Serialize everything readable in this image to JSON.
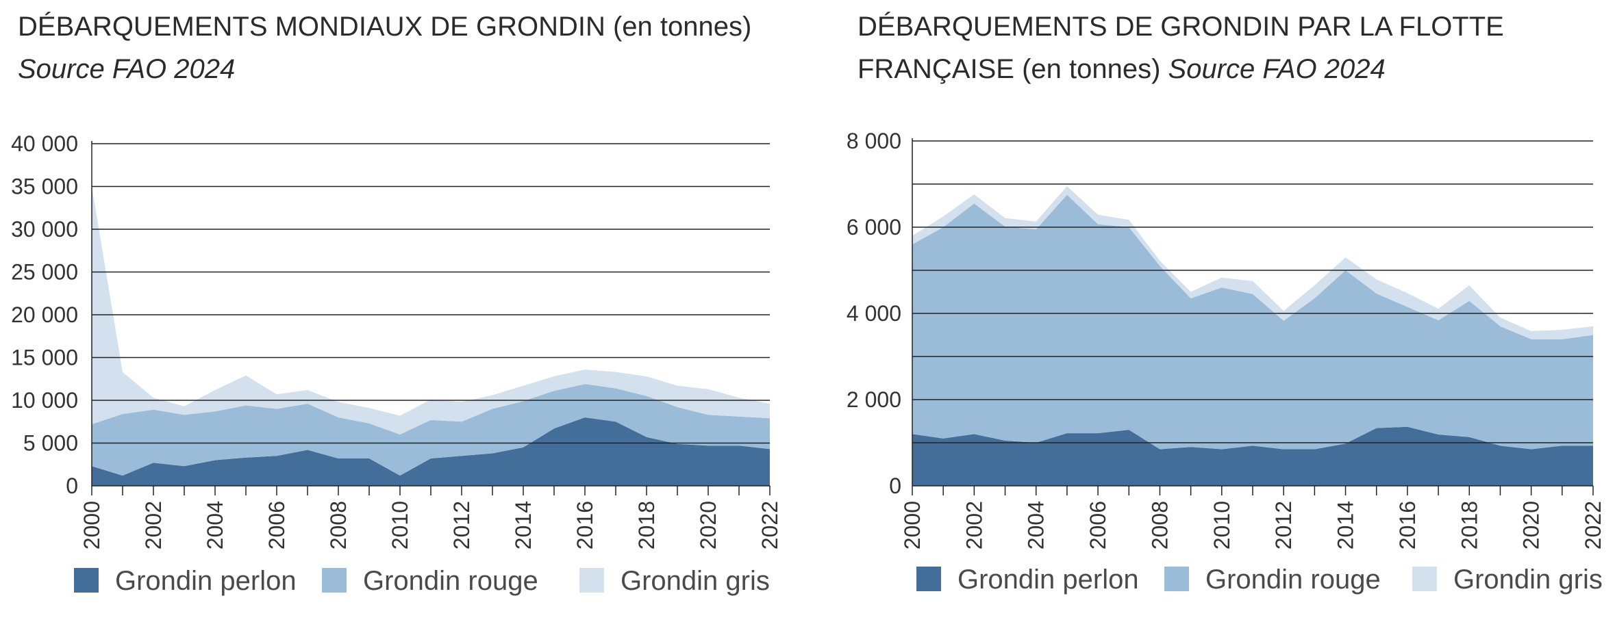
{
  "colors": {
    "perlon": "#436e99",
    "rouge": "#9bbcd8",
    "gris": "#d3e0ee",
    "grid": "#222222"
  },
  "chart_data": [
    {
      "type": "area",
      "stacked": true,
      "title": "DÉBARQUEMENTS MONDIAUX DE GRONDIN",
      "title_unit": "(en tonnes)",
      "subtitle": "Source FAO 2024",
      "ylim": [
        0,
        40000
      ],
      "y_ticks": [
        0,
        5000,
        10000,
        15000,
        20000,
        25000,
        30000,
        35000,
        40000
      ],
      "y_tick_labels": [
        "0",
        "5 000",
        "10 000",
        "15 000",
        "20 000",
        "25 000",
        "30 000",
        "35 000",
        "40 000"
      ],
      "x": [
        2000,
        2001,
        2002,
        2003,
        2004,
        2005,
        2006,
        2007,
        2008,
        2009,
        2010,
        2011,
        2012,
        2013,
        2014,
        2015,
        2016,
        2017,
        2018,
        2019,
        2020,
        2021,
        2022
      ],
      "x_tick_labels": [
        "2000",
        "2002",
        "2004",
        "2006",
        "2008",
        "2010",
        "2012",
        "2014",
        "2016",
        "2018",
        "2020",
        "2022"
      ],
      "grid": true,
      "legend_position": "bottom",
      "series": [
        {
          "name": "Grondin perlon",
          "color_key": "perlon",
          "values": [
            2300,
            1200,
            2700,
            2300,
            3000,
            3300,
            3500,
            4200,
            3200,
            3200,
            1200,
            3200,
            3500,
            3800,
            4500,
            6700,
            8000,
            7500,
            5700,
            4900,
            4700,
            4700,
            4300
          ]
        },
        {
          "name": "Grondin rouge",
          "color_key": "rouge",
          "values": [
            4900,
            7200,
            6200,
            6000,
            5700,
            6100,
            5500,
            5400,
            4800,
            4100,
            4800,
            4500,
            4000,
            5200,
            5400,
            4400,
            3900,
            3900,
            4800,
            4300,
            3600,
            3400,
            3600
          ]
        },
        {
          "name": "Grondin gris",
          "color_key": "gris",
          "values": [
            27800,
            4900,
            1400,
            1000,
            2500,
            3500,
            1700,
            1600,
            1800,
            1800,
            2200,
            2400,
            2300,
            1600,
            1800,
            1700,
            1700,
            1900,
            2300,
            2500,
            3000,
            2200,
            1700
          ]
        }
      ]
    },
    {
      "type": "area",
      "stacked": true,
      "title": "DÉBARQUEMENTS DE GRONDIN PAR LA FLOTTE FRANÇAISE",
      "title_unit": "(en tonnes)",
      "subtitle": "Source FAO 2024",
      "ylim": [
        0,
        8000
      ],
      "y_ticks": [
        0,
        2000,
        4000,
        6000,
        8000
      ],
      "y_tick_labels": [
        "0",
        "2 000",
        "4 000",
        "6 000",
        "8 000"
      ],
      "minor_grid": [
        1000,
        3000,
        5000,
        7000
      ],
      "x": [
        2000,
        2001,
        2002,
        2003,
        2004,
        2005,
        2006,
        2007,
        2008,
        2009,
        2010,
        2011,
        2012,
        2013,
        2014,
        2015,
        2016,
        2017,
        2018,
        2019,
        2020,
        2021,
        2022
      ],
      "x_tick_labels": [
        "2000",
        "2002",
        "2004",
        "2006",
        "2008",
        "2010",
        "2012",
        "2014",
        "2016",
        "2018",
        "2020",
        "2022"
      ],
      "grid": true,
      "legend_position": "bottom",
      "series": [
        {
          "name": "Grondin perlon",
          "color_key": "perlon",
          "values": [
            1200,
            1100,
            1200,
            1050,
            1000,
            1220,
            1220,
            1300,
            850,
            900,
            850,
            930,
            850,
            850,
            980,
            1340,
            1370,
            1190,
            1130,
            930,
            850,
            930,
            930
          ]
        },
        {
          "name": "Grondin rouge",
          "color_key": "rouge",
          "values": [
            4400,
            4900,
            5350,
            4960,
            4950,
            5530,
            4850,
            4700,
            4250,
            3450,
            3750,
            3520,
            2980,
            3500,
            4020,
            3120,
            2780,
            2650,
            3160,
            2770,
            2550,
            2470,
            2570
          ]
        },
        {
          "name": "Grondin gris",
          "color_key": "gris",
          "values": [
            200,
            250,
            210,
            200,
            180,
            200,
            220,
            170,
            120,
            150,
            230,
            300,
            230,
            300,
            300,
            330,
            320,
            270,
            360,
            200,
            190,
            220,
            200
          ]
        }
      ]
    }
  ]
}
